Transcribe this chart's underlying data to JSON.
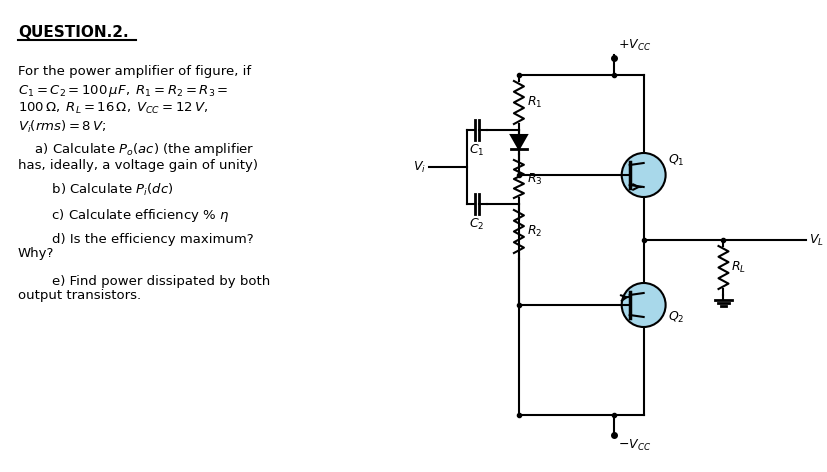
{
  "bg_color": "#ffffff",
  "text_color": "#000000",
  "circuit_color": "#000000",
  "transistor_fill": "#a8d8ea",
  "title": "QUESTION.2.",
  "line1": "For the power amplifier of figure, if",
  "line2": "$C_1 = C_2 = 100\\,\\mu F,\\; R_1 = R_2 = R_3 =$",
  "line3": "$100\\,\\Omega,\\; R_L = 16\\,\\Omega,\\; V_{CC} = 12\\,V,$",
  "line4": "$V_i(rms) = 8\\,V;$",
  "qa": "    a) Calculate $P_o(ac)$ (the amplifier",
  "qa2": "has, ideally, a voltage gain of unity)",
  "qb": "        b) Calculate $P_i(dc)$",
  "qc": "        c) Calculate efficiency % $\\eta$",
  "qd": "        d) Is the efficiency maximum?",
  "qd2": "Why?",
  "qe": "        e) Find power dissipated by both",
  "qe2": "output transistors."
}
